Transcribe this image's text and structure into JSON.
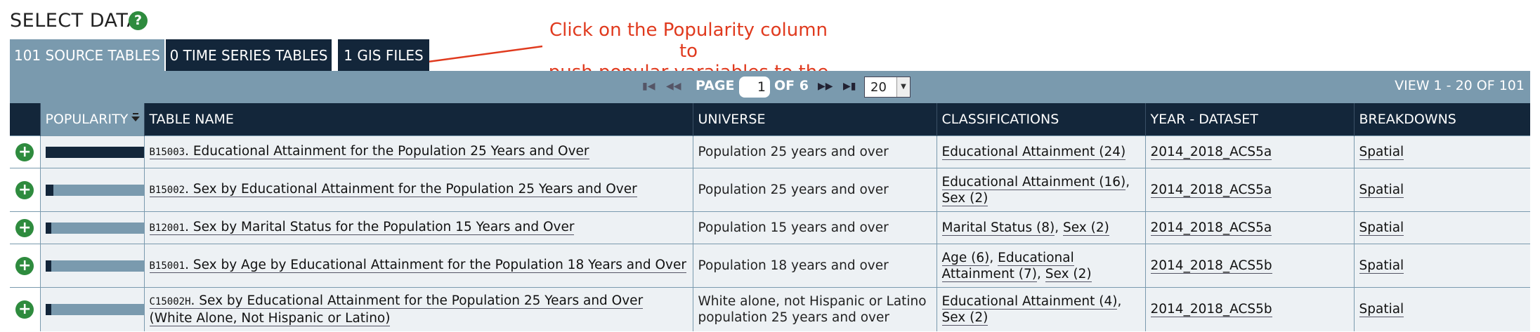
{
  "section": {
    "title": "SELECT DATA",
    "help_label": "?"
  },
  "annotation": {
    "line1": "Click on the Popularity column to",
    "line2": "push popular varaiables to the top"
  },
  "tabs": [
    {
      "label": "101 SOURCE TABLES"
    },
    {
      "label": "0 TIME SERIES TABLES"
    },
    {
      "label": "1 GIS FILES"
    }
  ],
  "pager": {
    "page_label": "PAGE",
    "page_value": "1",
    "of_label": "OF 6",
    "page_size": "20",
    "view_info": "VIEW 1 - 20 OF 101"
  },
  "columns": [
    "POPULARITY",
    "TABLE NAME",
    "UNIVERSE",
    "CLASSIFICATIONS",
    "YEAR - DATASET",
    "BREAKDOWNS"
  ],
  "rows": [
    {
      "popularity": 1.0,
      "code": "B15003",
      "name": "Educational Attainment for the Population 25 Years and Over",
      "universe": "Population 25 years and over",
      "class1": "Educational Attainment (24)",
      "class2": "",
      "dataset": "2014_2018_ACS5a",
      "breakdown": "Spatial"
    },
    {
      "popularity": 0.08,
      "code": "B15002",
      "name": "Sex by Educational Attainment for the Population 25 Years and Over",
      "universe": "Population 25 years and over",
      "class1": "Educational Attainment (16)",
      "class2": "Sex (2)",
      "dataset": "2014_2018_ACS5a",
      "breakdown": "Spatial"
    },
    {
      "popularity": 0.06,
      "code": "B12001",
      "name": "Sex by Marital Status for the Population 15 Years and Over",
      "universe": "Population 15 years and over",
      "class1": "Marital Status (8)",
      "class2": "Sex (2)",
      "dataset": "2014_2018_ACS5a",
      "breakdown": "Spatial"
    },
    {
      "popularity": 0.05,
      "code": "B15001",
      "name": "Sex by Age by Educational Attainment for the Population 18 Years and Over",
      "universe": "Population 18 years and over",
      "class1": "Age (6)",
      "class2": "Educational Attainment (7)",
      "class3": "Sex (2)",
      "dataset": "2014_2018_ACS5b",
      "breakdown": "Spatial"
    },
    {
      "popularity": 0.03,
      "code": "C15002H",
      "name": "Sex by Educational Attainment for the Population 25 Years and Over (White Alone, Not Hispanic or Latino)",
      "universe": "White alone, not Hispanic or Latino population 25 years and over",
      "class1": "Educational Attainment (4)",
      "class2": "Sex (2)",
      "dataset": "2014_2018_ACS5b",
      "breakdown": "Spatial"
    }
  ],
  "colors": {
    "accent": "#2e8b3e",
    "dark": "#13263a",
    "steel": "#7a9aae",
    "annotation": "#e03a1e"
  }
}
